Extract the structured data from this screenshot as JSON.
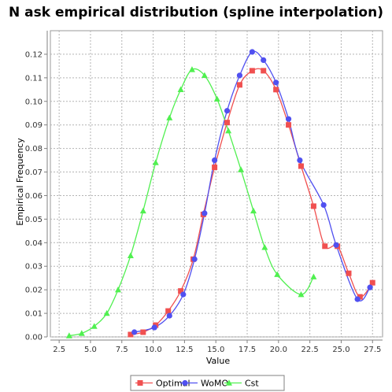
{
  "chart_data": {
    "type": "line",
    "title": "N ask empirical distribution (spline interpolation)",
    "xlabel": "Value",
    "ylabel": "Empirical Frequency",
    "xlim": [
      1.8,
      28.3
    ],
    "ylim": [
      0.0,
      0.13
    ],
    "x_ticks": [
      2.5,
      5.0,
      7.5,
      10.0,
      12.5,
      15.0,
      17.5,
      20.0,
      22.5,
      25.0,
      27.5
    ],
    "x_tick_labels": [
      "2.5",
      "5.0",
      "7.5",
      "10.0",
      "12.5",
      "15.0",
      "17.5",
      "20.0",
      "22.5",
      "25.0",
      "27.5"
    ],
    "y_ticks": [
      0.0,
      0.01,
      0.02,
      0.03,
      0.04,
      0.05,
      0.06,
      0.07,
      0.08,
      0.09,
      0.1,
      0.11,
      0.12
    ],
    "y_tick_labels": [
      "0.00",
      "0.01",
      "0.02",
      "0.03",
      "0.04",
      "0.05",
      "0.06",
      "0.07",
      "0.08",
      "0.09",
      "0.10",
      "0.11",
      "0.12"
    ],
    "grid": true,
    "legend_position": "bottom",
    "series": [
      {
        "name": "Optimal",
        "color": "#f05050",
        "marker": "square",
        "x": [
          8.2,
          9.2,
          10.2,
          11.2,
          12.2,
          13.2,
          14.0,
          14.9,
          15.9,
          16.9,
          17.9,
          18.8,
          19.8,
          20.8,
          21.8,
          22.8,
          23.7,
          24.7,
          25.6,
          26.5,
          27.5
        ],
        "y": [
          0.001,
          0.002,
          0.005,
          0.011,
          0.0195,
          0.033,
          0.052,
          0.072,
          0.091,
          0.107,
          0.113,
          0.113,
          0.105,
          0.09,
          0.0725,
          0.0555,
          0.0385,
          0.0385,
          0.027,
          0.017,
          0.023
        ]
      },
      {
        "name": "WoMO",
        "color": "#5050f0",
        "marker": "circle",
        "x": [
          8.5,
          10.1,
          11.3,
          12.4,
          13.3,
          14.1,
          14.9,
          15.9,
          16.9,
          17.9,
          18.8,
          19.8,
          20.8,
          21.7,
          23.6,
          24.6,
          26.3,
          27.3
        ],
        "y": [
          0.002,
          0.004,
          0.009,
          0.018,
          0.033,
          0.0525,
          0.075,
          0.096,
          0.111,
          0.121,
          0.1175,
          0.108,
          0.0925,
          0.075,
          0.056,
          0.039,
          0.016,
          0.021
        ]
      },
      {
        "name": "Cst",
        "color": "#50f050",
        "marker": "triangle",
        "x": [
          3.3,
          4.3,
          5.3,
          6.3,
          7.2,
          8.2,
          9.2,
          10.2,
          11.3,
          12.2,
          13.1,
          14.1,
          15.1,
          16.0,
          17.0,
          18.0,
          18.9,
          19.9,
          21.8,
          22.8
        ],
        "y": [
          0.0005,
          0.0015,
          0.0045,
          0.01,
          0.02,
          0.0345,
          0.0535,
          0.074,
          0.093,
          0.105,
          0.1135,
          0.111,
          0.101,
          0.0875,
          0.071,
          0.0535,
          0.038,
          0.0265,
          0.018,
          0.0255
        ]
      }
    ]
  }
}
